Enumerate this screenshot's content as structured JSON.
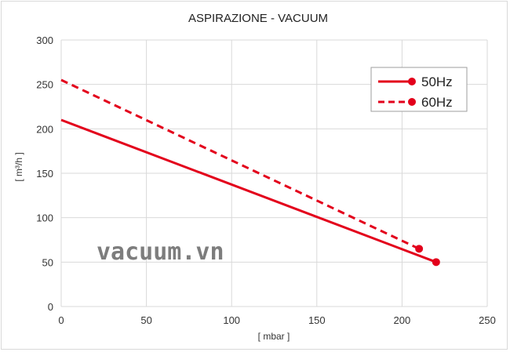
{
  "chart_data": {
    "type": "line",
    "title": "ASPIRAZIONE - VACUUM",
    "xlabel": "[ mbar ]",
    "ylabel": "[ m³/h ]",
    "xlim": [
      0,
      250
    ],
    "ylim": [
      0,
      300
    ],
    "xticks": [
      0,
      50,
      100,
      150,
      200,
      250
    ],
    "yticks": [
      0,
      50,
      100,
      150,
      200,
      250,
      300
    ],
    "grid": true,
    "legend_position": "top-right",
    "series": [
      {
        "name": "50Hz",
        "style": "solid",
        "color": "#e3001b",
        "x": [
          0,
          220
        ],
        "y": [
          210,
          50
        ],
        "end_marker": true
      },
      {
        "name": "60Hz",
        "style": "dashed",
        "color": "#e3001b",
        "x": [
          0,
          210
        ],
        "y": [
          255,
          65
        ],
        "end_marker": true
      }
    ]
  },
  "watermark": "vacuum.vn"
}
